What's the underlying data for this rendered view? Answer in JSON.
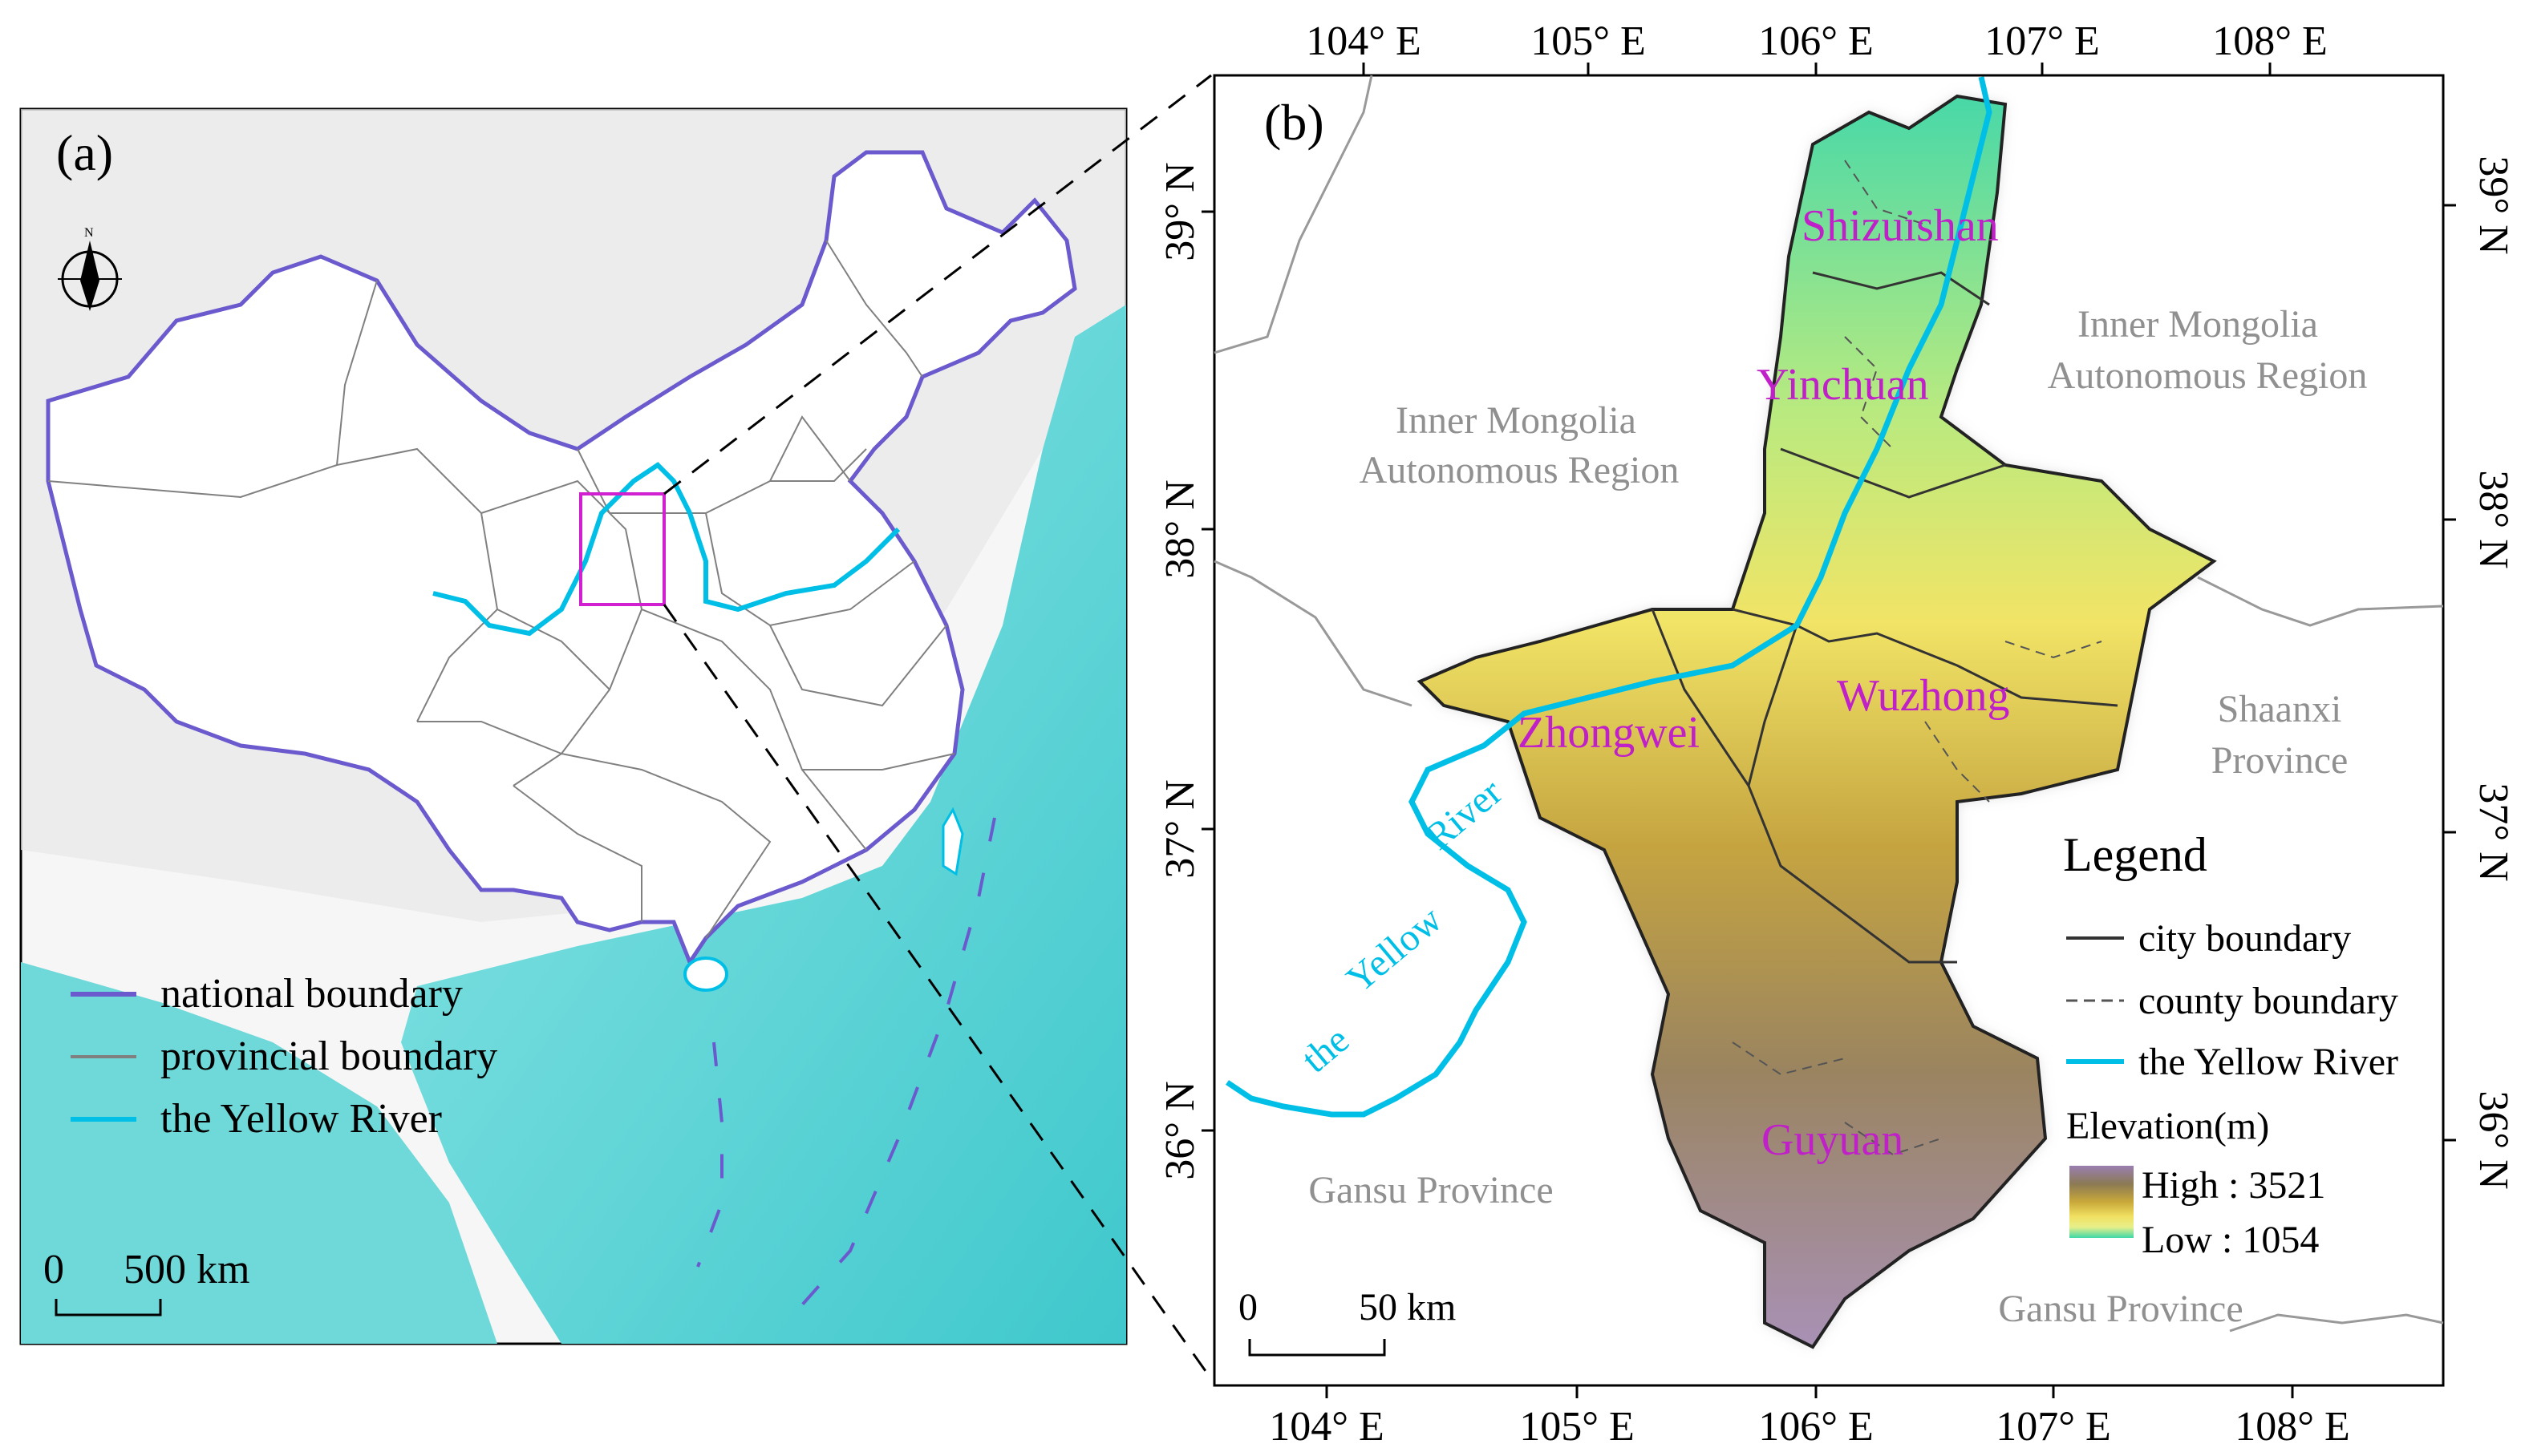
{
  "panel_a": {
    "label": "(a)",
    "north": "N",
    "legend": [
      {
        "label": "national boundary",
        "color": "#6a5acd",
        "style": "solid"
      },
      {
        "label": "provincial boundary",
        "color": "#808080",
        "style": "solid"
      },
      {
        "label": "the Yellow River",
        "color": "#00bfe6",
        "style": "solid"
      }
    ],
    "scale": {
      "zero": "0",
      "value": "500 km"
    }
  },
  "panel_b": {
    "label": "(b)",
    "top_ticks": [
      "104° E",
      "105° E",
      "106° E",
      "107° E",
      "108° E"
    ],
    "bottom_ticks": [
      "104° E",
      "105° E",
      "106° E",
      "107° E",
      "108° E"
    ],
    "left_ticks": [
      "39° N",
      "38° N",
      "37° N",
      "36° N"
    ],
    "right_ticks": [
      "39° N",
      "38° N",
      "37° N",
      "36° N"
    ],
    "cities": [
      "Shizuishan",
      "Yinchuan",
      "Wuzhong",
      "Zhongwei",
      "Guyuan"
    ],
    "regions": {
      "inner_mongolia_west": [
        "Inner Mongolia",
        "Autonomous Region"
      ],
      "inner_mongolia_east": [
        "Inner Mongolia",
        "Autonomous Region"
      ],
      "shaanxi": [
        "Shaanxi",
        "Province"
      ],
      "gansu_west": "Gansu Province",
      "gansu_south": "Gansu Province"
    },
    "river_label": [
      "the",
      "Yellow",
      "River"
    ],
    "legend": {
      "title": "Legend",
      "items": [
        {
          "label": "city boundary",
          "color": "#333333",
          "style": "solid"
        },
        {
          "label": "county boundary",
          "color": "#555555",
          "style": "dashed"
        },
        {
          "label": "the Yellow River",
          "color": "#00bfe6",
          "style": "solid"
        }
      ],
      "elevation_title": "Elevation(m)",
      "high": "High : 3521",
      "low": "Low : 1054",
      "ramp_colors": [
        "#9a7fb0",
        "#8b7a55",
        "#b89a3a",
        "#f0e060",
        "#e8ef8a",
        "#3fd8a8"
      ]
    },
    "scale": {
      "zero": "0",
      "value": "50 km"
    }
  },
  "colors": {
    "river": "#00bfe6",
    "city_label": "#c020c8",
    "region_label": "#909090",
    "highlight_box": "#d020d0",
    "sea": "#5cd3d3"
  }
}
